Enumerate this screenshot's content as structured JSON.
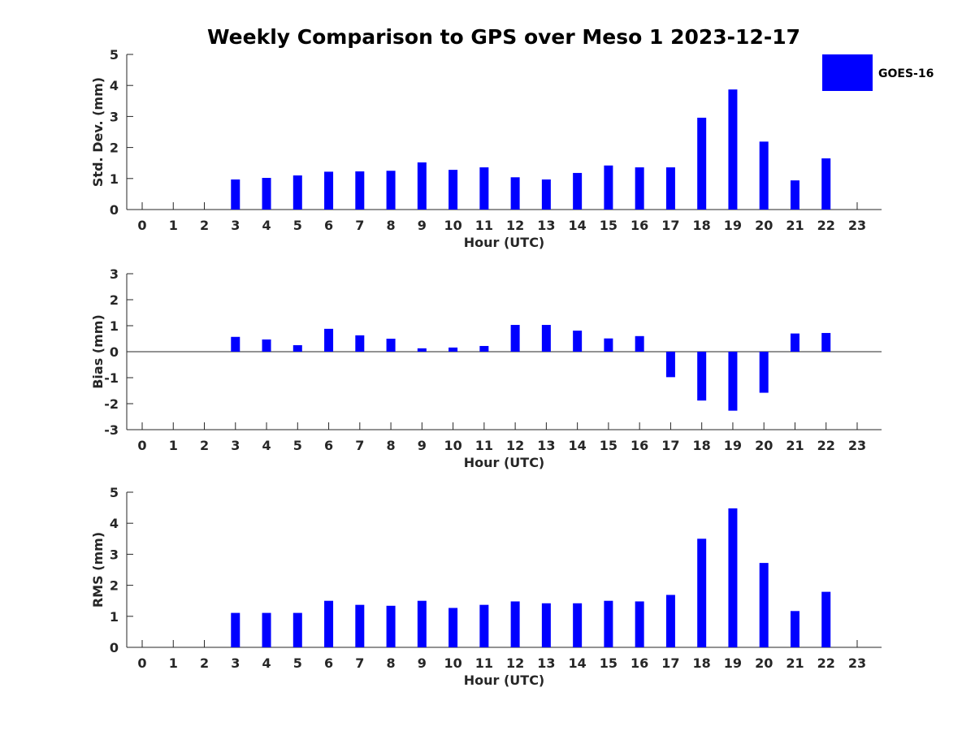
{
  "chart_data": {
    "title": "Weekly Comparison to GPS over Meso 1 2023-12-17",
    "legend": {
      "label": "GOES-16",
      "color": "#0000ff",
      "placement": "top-right"
    },
    "bar_color": "#0000ff",
    "panels": [
      {
        "id": "stddev",
        "type": "bar",
        "ylabel": "Std. Dev. (mm)",
        "xlabel": "Hour (UTC)",
        "ylim": [
          0,
          5
        ],
        "yticks": [
          0,
          1,
          2,
          3,
          4,
          5
        ],
        "categories": [
          "0",
          "1",
          "2",
          "3",
          "4",
          "5",
          "6",
          "7",
          "8",
          "9",
          "10",
          "11",
          "12",
          "13",
          "14",
          "15",
          "16",
          "17",
          "18",
          "19",
          "20",
          "21",
          "22",
          "23"
        ],
        "values": [
          null,
          null,
          null,
          0.97,
          1.02,
          1.1,
          1.22,
          1.23,
          1.25,
          1.52,
          1.28,
          1.36,
          1.04,
          0.97,
          1.18,
          1.42,
          1.36,
          1.36,
          2.96,
          3.87,
          2.19,
          0.94,
          1.65,
          null
        ]
      },
      {
        "id": "bias",
        "type": "bar",
        "ylabel": "Bias (mm)",
        "xlabel": "Hour (UTC)",
        "ylim": [
          -3,
          3
        ],
        "yticks": [
          -3,
          -2,
          -1,
          0,
          1,
          2,
          3
        ],
        "categories": [
          "0",
          "1",
          "2",
          "3",
          "4",
          "5",
          "6",
          "7",
          "8",
          "9",
          "10",
          "11",
          "12",
          "13",
          "14",
          "15",
          "16",
          "17",
          "18",
          "19",
          "20",
          "21",
          "22",
          "23"
        ],
        "values": [
          null,
          null,
          null,
          0.57,
          0.47,
          0.25,
          0.88,
          0.63,
          0.5,
          0.13,
          0.16,
          0.22,
          1.03,
          1.03,
          0.81,
          0.51,
          0.6,
          -0.98,
          -1.88,
          -2.27,
          -1.58,
          0.7,
          0.72,
          null
        ]
      },
      {
        "id": "rms",
        "type": "bar",
        "ylabel": "RMS (mm)",
        "xlabel": "Hour (UTC)",
        "ylim": [
          0,
          5
        ],
        "yticks": [
          0,
          1,
          2,
          3,
          4,
          5
        ],
        "categories": [
          "0",
          "1",
          "2",
          "3",
          "4",
          "5",
          "6",
          "7",
          "8",
          "9",
          "10",
          "11",
          "12",
          "13",
          "14",
          "15",
          "16",
          "17",
          "18",
          "19",
          "20",
          "21",
          "22",
          "23"
        ],
        "values": [
          null,
          null,
          null,
          1.11,
          1.11,
          1.11,
          1.5,
          1.37,
          1.34,
          1.5,
          1.27,
          1.37,
          1.48,
          1.42,
          1.42,
          1.5,
          1.48,
          1.69,
          3.5,
          4.48,
          2.72,
          1.17,
          1.79,
          null
        ]
      }
    ]
  }
}
